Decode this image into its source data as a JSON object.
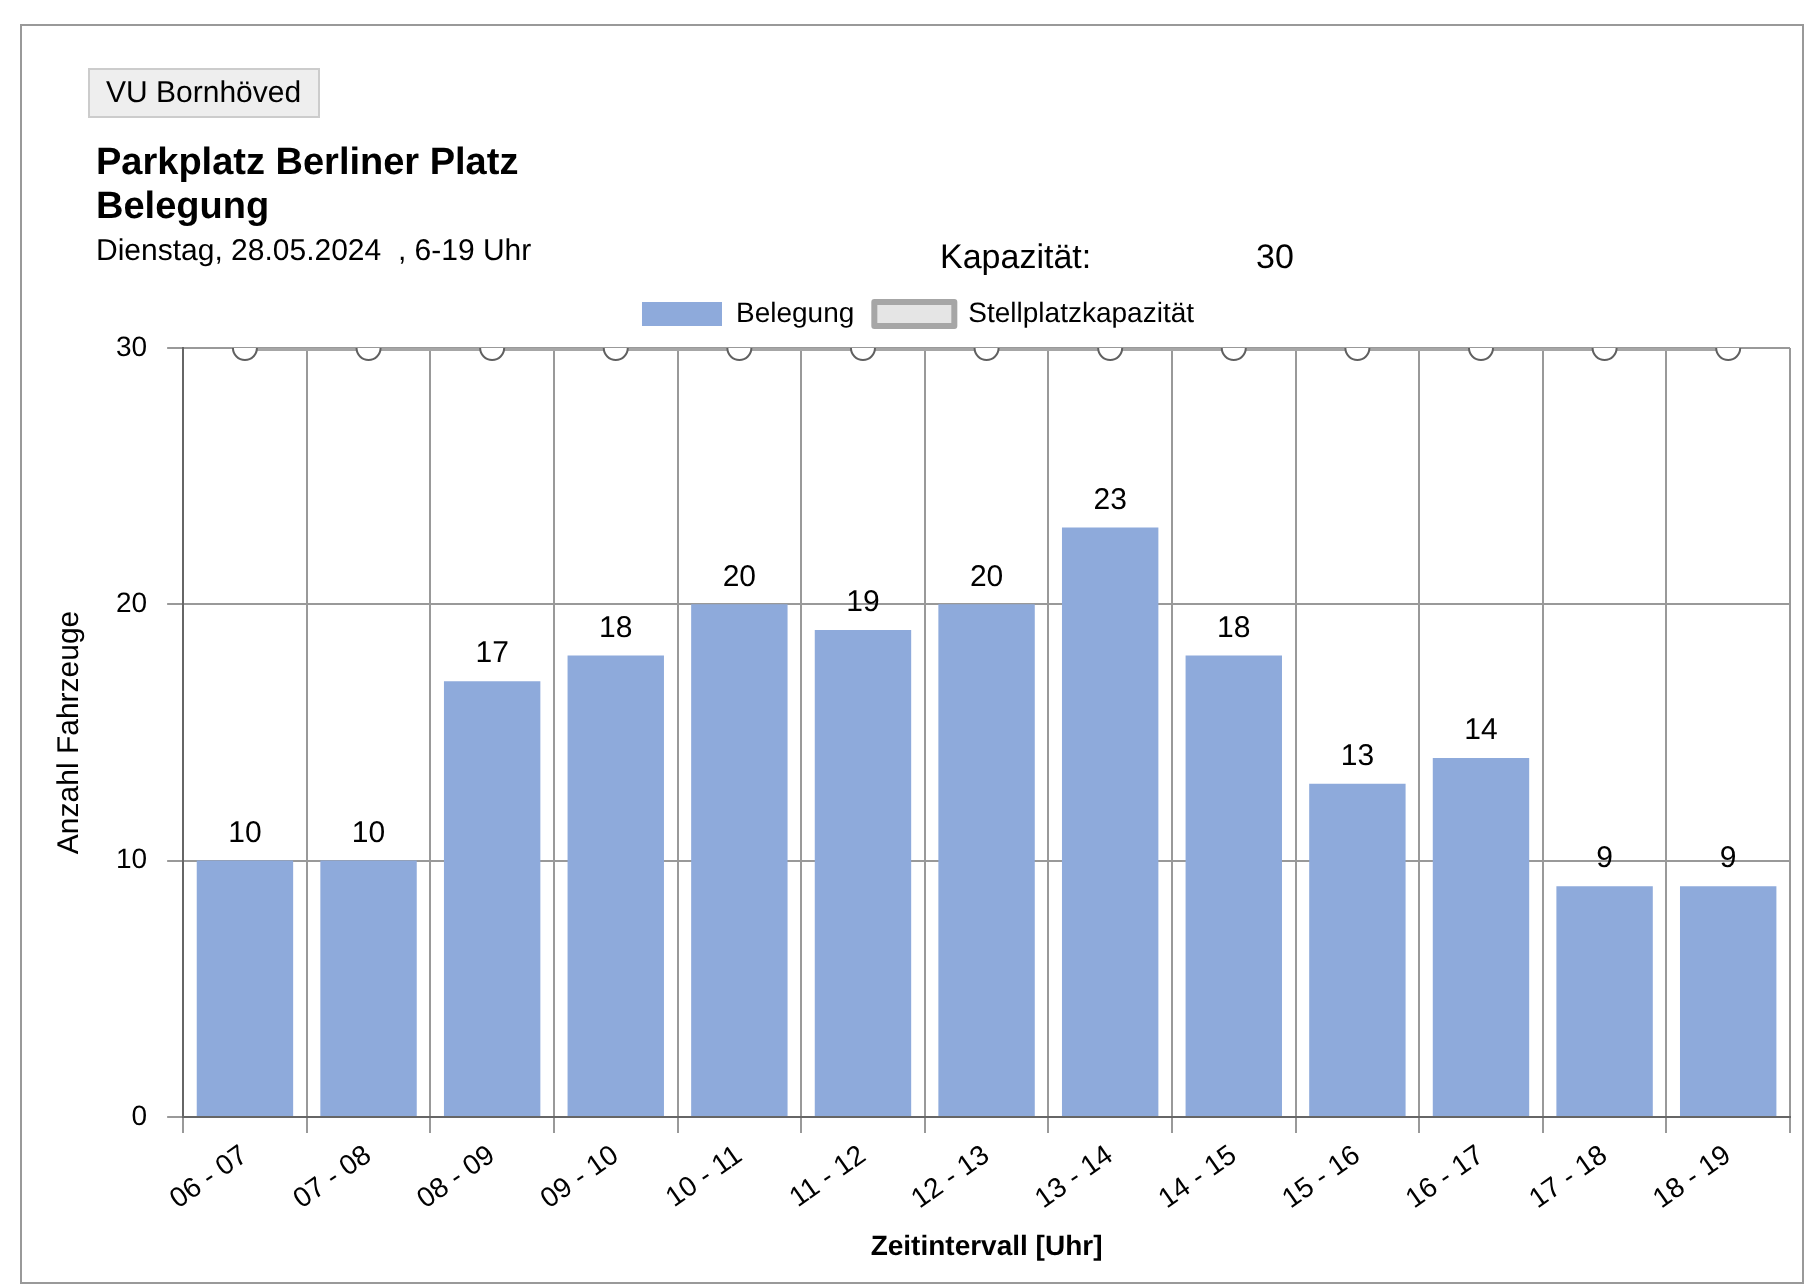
{
  "chart_data": {
    "type": "bar",
    "title": "Parkplatz Berliner Platz",
    "subtitle": "Belegung",
    "xlabel": "Zeitintervall [Uhr]",
    "ylabel": "Anzahl Fahrzeuge",
    "annotations": [
      "VU Bornhöved",
      "Dienstag, 28.05.2024  , 6-19 Uhr",
      "Kapazität:",
      "30"
    ],
    "categories": [
      "06 - 07",
      "07 - 08",
      "08 - 09",
      "09 - 10",
      "10 - 11",
      "11 - 12",
      "12 - 13",
      "13 - 14",
      "14 - 15",
      "15 - 16",
      "16 - 17",
      "17 - 18",
      "18 - 19"
    ],
    "series": [
      {
        "name": "Belegung",
        "color": "#8eaadb",
        "values": [
          10,
          10,
          17,
          18,
          20,
          19,
          20,
          23,
          18,
          13,
          14,
          9,
          9
        ],
        "value_labels": [
          "10",
          "10",
          "17",
          "18",
          "20",
          "19",
          "20",
          "23",
          "18",
          "13",
          "14",
          "9",
          "9"
        ]
      },
      {
        "name": "Stellplatzkapazität",
        "type": "line",
        "color": "#a6a6a6",
        "marker": "circle",
        "values": [
          30,
          30,
          30,
          30,
          30,
          30,
          30,
          30,
          30,
          30,
          30,
          30,
          30
        ]
      }
    ],
    "ylim": [
      0,
      30
    ],
    "yticks": [
      0,
      10,
      20,
      30
    ],
    "grid": true,
    "legend": "top"
  }
}
